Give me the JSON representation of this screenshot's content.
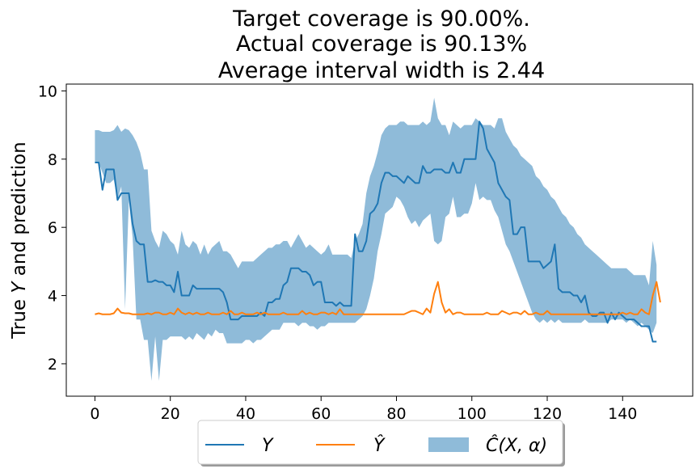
{
  "chart_data": {
    "type": "line",
    "title_lines": [
      "Target coverage is 90.00%.",
      "Actual coverage is 90.13%",
      "Average interval width is 2.44"
    ],
    "xlabel": "",
    "ylabel": "True Y and prediction",
    "xlim": [
      -7.6,
      158.6
    ],
    "ylim": [
      1.05,
      10.2
    ],
    "xticks": [
      0,
      20,
      40,
      60,
      80,
      100,
      120,
      140
    ],
    "yticks": [
      2,
      4,
      6,
      8,
      10
    ],
    "grid": false,
    "legend_position": "bottom-center",
    "legend": [
      "Y",
      "Ŷ",
      "Ĉ(X, α)"
    ],
    "colors": {
      "y": "#1f77b4",
      "yhat": "#ff7f0e",
      "band": "#8fbbd9"
    },
    "series": [
      {
        "name": "Y",
        "values": [
          7.9,
          7.9,
          7.1,
          7.7,
          7.7,
          7.7,
          6.8,
          7.0,
          7.0,
          7.0,
          6.1,
          5.6,
          5.5,
          5.5,
          4.4,
          4.4,
          4.45,
          4.4,
          4.4,
          4.3,
          4.3,
          4.1,
          4.7,
          4.0,
          4.0,
          4.0,
          4.3,
          4.2,
          4.2,
          4.2,
          4.2,
          4.2,
          4.2,
          4.2,
          4.1,
          3.8,
          3.3,
          3.3,
          3.3,
          3.4,
          3.4,
          3.4,
          3.4,
          3.4,
          3.5,
          3.4,
          3.8,
          3.8,
          3.9,
          3.9,
          4.3,
          4.4,
          4.8,
          4.8,
          4.8,
          4.7,
          4.7,
          4.6,
          4.3,
          4.4,
          4.4,
          3.8,
          3.8,
          3.8,
          3.7,
          3.8,
          3.7,
          3.7,
          3.7,
          5.8,
          5.3,
          5.3,
          5.6,
          6.4,
          6.5,
          6.7,
          7.3,
          7.6,
          7.6,
          7.5,
          7.5,
          7.4,
          7.3,
          7.5,
          7.4,
          7.3,
          7.3,
          7.8,
          7.6,
          7.6,
          7.7,
          7.7,
          7.7,
          7.6,
          7.6,
          7.9,
          7.6,
          7.6,
          8.0,
          8.0,
          8.0,
          8.0,
          9.1,
          8.9,
          8.3,
          8.1,
          7.9,
          7.3,
          7.1,
          6.9,
          6.8,
          5.8,
          5.8,
          6.0,
          6.0,
          5.0,
          5.0,
          5.0,
          5.0,
          4.8,
          4.9,
          5.0,
          5.5,
          4.2,
          4.1,
          4.1,
          4.1,
          4.0,
          4.0,
          3.8,
          4.0,
          3.5,
          3.4,
          3.4,
          3.5,
          3.5,
          3.2,
          3.5,
          3.3,
          3.5,
          3.4,
          3.3,
          3.3,
          3.3,
          3.2,
          3.1,
          3.1,
          3.1,
          2.65,
          2.65
        ],
        "x_start": 0
      },
      {
        "name": "Ŷ",
        "values": [
          3.45,
          3.48,
          3.45,
          3.45,
          3.45,
          3.48,
          3.62,
          3.5,
          3.48,
          3.48,
          3.45,
          3.45,
          3.45,
          3.45,
          3.48,
          3.45,
          3.5,
          3.5,
          3.45,
          3.45,
          3.5,
          3.45,
          3.62,
          3.5,
          3.45,
          3.5,
          3.45,
          3.5,
          3.45,
          3.45,
          3.5,
          3.45,
          3.45,
          3.45,
          3.5,
          3.45,
          3.55,
          3.45,
          3.45,
          3.5,
          3.45,
          3.45,
          3.45,
          3.5,
          3.45,
          3.5,
          3.45,
          3.45,
          3.45,
          3.45,
          3.5,
          3.45,
          3.45,
          3.45,
          3.45,
          3.55,
          3.45,
          3.5,
          3.45,
          3.45,
          3.5,
          3.5,
          3.45,
          3.5,
          3.45,
          3.6,
          3.45,
          3.45,
          3.45,
          3.45,
          3.45,
          3.45,
          3.45,
          3.45,
          3.45,
          3.45,
          3.45,
          3.45,
          3.45,
          3.45,
          3.45,
          3.45,
          3.45,
          3.5,
          3.55,
          3.55,
          3.5,
          3.45,
          3.62,
          3.5,
          4.05,
          4.4,
          3.8,
          3.5,
          3.6,
          3.45,
          3.5,
          3.5,
          3.45,
          3.45,
          3.45,
          3.45,
          3.45,
          3.45,
          3.5,
          3.45,
          3.45,
          3.45,
          3.55,
          3.5,
          3.45,
          3.5,
          3.5,
          3.45,
          3.55,
          3.45,
          3.45,
          3.5,
          3.45,
          3.45,
          3.55,
          3.45,
          3.45,
          3.45,
          3.45,
          3.45,
          3.45,
          3.45,
          3.45,
          3.45,
          3.45,
          3.45,
          3.45,
          3.45,
          3.45,
          3.45,
          3.45,
          3.45,
          3.45,
          3.45,
          3.5,
          3.45,
          3.5,
          3.45,
          3.45,
          3.6,
          3.5,
          3.45,
          4.0,
          4.4,
          3.8
        ],
        "x_start": 0
      }
    ],
    "band": {
      "name": "Ĉ(X, α)",
      "x_start": 0,
      "upper": [
        8.85,
        8.85,
        8.8,
        8.8,
        8.8,
        8.85,
        9.0,
        8.8,
        8.9,
        8.85,
        8.7,
        8.5,
        8.2,
        7.7,
        7.7,
        5.9,
        5.6,
        5.4,
        5.9,
        5.8,
        5.6,
        5.5,
        5.2,
        5.9,
        5.5,
        5.4,
        5.6,
        5.5,
        5.2,
        5.5,
        5.2,
        5.4,
        5.5,
        5.6,
        5.3,
        5.3,
        5.2,
        5.0,
        4.8,
        5.0,
        5.0,
        5.0,
        5.0,
        5.1,
        5.2,
        5.3,
        5.4,
        5.4,
        5.5,
        5.5,
        5.6,
        5.6,
        5.4,
        5.6,
        5.8,
        5.6,
        5.4,
        5.5,
        5.4,
        5.3,
        5.2,
        5.3,
        5.5,
        5.2,
        5.2,
        5.2,
        5.2,
        5.2,
        5.1,
        5.6,
        5.8,
        6.1,
        7.0,
        7.5,
        7.8,
        8.2,
        8.7,
        8.9,
        9.0,
        9.0,
        9.0,
        9.1,
        9.1,
        9.0,
        9.0,
        9.0,
        9.0,
        9.1,
        9.0,
        9.1,
        9.8,
        9.2,
        9.0,
        9.0,
        8.7,
        9.1,
        9.0,
        8.9,
        9.0,
        9.0,
        9.0,
        9.2,
        9.1,
        9.0,
        9.0,
        9.0,
        8.9,
        9.2,
        9.2,
        8.8,
        8.6,
        8.4,
        8.3,
        8.1,
        8.0,
        7.9,
        7.8,
        7.5,
        7.4,
        7.2,
        7.1,
        6.9,
        6.8,
        6.6,
        6.4,
        6.3,
        6.1,
        6.0,
        5.8,
        5.7,
        5.5,
        5.4,
        5.3,
        5.2,
        5.1,
        5.0,
        4.9,
        4.8,
        4.8,
        4.8,
        4.8,
        4.8,
        4.7,
        4.6,
        4.6,
        4.6,
        4.6,
        4.3,
        5.6,
        4.9
      ],
      "lower": [
        7.9,
        7.9,
        7.6,
        7.3,
        7.3,
        7.4,
        6.8,
        7.2,
        3.6,
        6.8,
        5.7,
        3.3,
        3.3,
        2.7,
        2.7,
        1.5,
        2.8,
        1.5,
        2.7,
        2.7,
        2.8,
        2.8,
        2.8,
        2.8,
        2.7,
        2.8,
        2.7,
        2.9,
        2.8,
        2.7,
        2.9,
        2.8,
        3.0,
        2.9,
        2.9,
        2.6,
        2.6,
        2.6,
        2.6,
        2.6,
        2.7,
        2.7,
        2.6,
        2.7,
        2.7,
        2.8,
        2.9,
        3.0,
        3.0,
        3.0,
        3.2,
        3.2,
        3.2,
        3.2,
        3.1,
        3.2,
        3.2,
        3.1,
        3.1,
        3.0,
        3.1,
        3.1,
        3.2,
        3.2,
        3.2,
        3.2,
        3.2,
        3.2,
        3.2,
        3.2,
        3.3,
        3.4,
        3.6,
        4.0,
        4.5,
        5.3,
        5.8,
        6.4,
        6.5,
        6.6,
        6.9,
        6.8,
        6.6,
        6.3,
        6.1,
        6.2,
        6.0,
        6.2,
        6.3,
        6.4,
        5.6,
        5.5,
        5.6,
        6.3,
        6.4,
        6.9,
        6.3,
        6.3,
        6.4,
        6.4,
        6.7,
        7.3,
        6.8,
        6.9,
        6.8,
        6.8,
        6.5,
        6.3,
        5.9,
        5.5,
        5.3,
        5.0,
        4.7,
        4.4,
        4.1,
        3.8,
        3.5,
        3.3,
        3.2,
        3.3,
        3.2,
        3.3,
        3.2,
        3.3,
        3.2,
        3.2,
        3.2,
        3.2,
        3.2,
        3.2,
        3.3,
        3.2,
        3.2,
        3.2,
        3.2,
        3.2,
        3.2,
        3.3,
        3.3,
        3.3,
        3.3,
        3.2,
        3.3,
        3.2,
        3.1,
        3.2,
        3.1,
        3.0,
        2.9,
        3.2
      ]
    }
  }
}
